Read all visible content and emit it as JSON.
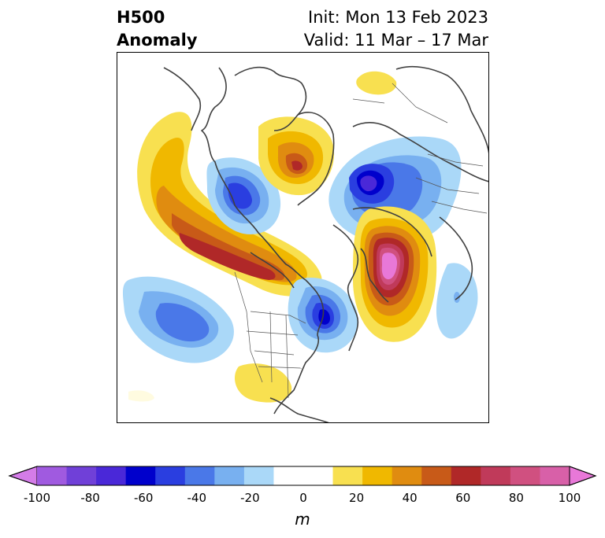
{
  "title": {
    "left_line1": "H500",
    "left_line2": "Anomaly",
    "right_line1": "Init: Mon 13 Feb 2023",
    "right_line2": "Valid: 11 Mar – 17 Mar"
  },
  "colorbar": {
    "unit": "m",
    "ticks": [
      "-100",
      "-80",
      "-60",
      "-40",
      "-20",
      "0",
      "20",
      "40",
      "60",
      "80",
      "100"
    ],
    "colors": [
      "#d47ce8",
      "#a05ae0",
      "#7040d8",
      "#4a28d8",
      "#0000cc",
      "#2a3ee0",
      "#4a78e8",
      "#78b0f0",
      "#aad8f8",
      "#ffffff",
      "#ffffff",
      "#f8e050",
      "#f0b800",
      "#e08c10",
      "#c85a18",
      "#b02828",
      "#c03a5a",
      "#d05080",
      "#d860a8",
      "#e878d8"
    ]
  }
}
